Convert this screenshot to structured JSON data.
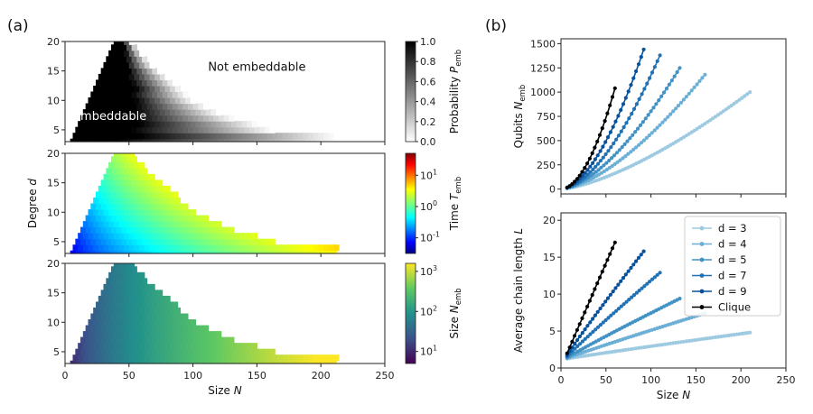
{
  "figure": {
    "panel_a_label": "(a)",
    "panel_b_label": "(b)"
  },
  "chart_data": [
    {
      "id": "a1",
      "type": "heatmap",
      "xlabel": "",
      "ylabel": "",
      "xlim": [
        0,
        250
      ],
      "ylim": [
        3,
        20
      ],
      "yticks": [
        5,
        10,
        15,
        20
      ],
      "x_tick_labels_shown": false,
      "colormap": "gray_r",
      "colorbar": {
        "label": "Probability",
        "symbol": "P",
        "subscript": "emb",
        "ticks": [
          "0.0",
          "0.2",
          "0.4",
          "0.6",
          "0.8",
          "1.0"
        ],
        "scale": "linear"
      },
      "annotations": [
        {
          "text": "Not embeddable",
          "x": 150,
          "y": 15,
          "color": "#111111"
        },
        {
          "text": "Embeddable",
          "x": 35,
          "y": 6.7,
          "color": "#ffffff"
        }
      ],
      "region_max_N_by_degree": [
        [
          3,
          212
        ],
        [
          4,
          212
        ],
        [
          5,
          162
        ],
        [
          6,
          150
        ],
        [
          7,
          132
        ],
        [
          8,
          120
        ],
        [
          9,
          110
        ],
        [
          10,
          100
        ],
        [
          11,
          95
        ],
        [
          12,
          90
        ],
        [
          13,
          85
        ],
        [
          14,
          80
        ],
        [
          15,
          74
        ],
        [
          16,
          68
        ],
        [
          17,
          64
        ],
        [
          18,
          60
        ],
        [
          19,
          56
        ],
        [
          20,
          52
        ]
      ],
      "fully_embeddable_max_N_by_degree": [
        [
          3,
          40
        ],
        [
          4,
          58
        ],
        [
          5,
          52
        ],
        [
          6,
          58
        ],
        [
          7,
          55
        ],
        [
          8,
          55
        ],
        [
          9,
          55
        ],
        [
          10,
          55
        ],
        [
          11,
          52
        ],
        [
          12,
          55
        ],
        [
          13,
          52
        ],
        [
          14,
          50
        ],
        [
          15,
          50
        ],
        [
          16,
          48
        ],
        [
          17,
          48
        ],
        [
          18,
          47
        ],
        [
          19,
          47
        ],
        [
          20,
          46
        ]
      ],
      "min_N_by_degree": [
        [
          3,
          4
        ],
        [
          4,
          6
        ],
        [
          5,
          8
        ],
        [
          6,
          10
        ],
        [
          7,
          12
        ],
        [
          8,
          14
        ],
        [
          9,
          16
        ],
        [
          10,
          18
        ],
        [
          11,
          20
        ],
        [
          12,
          22
        ],
        [
          13,
          24
        ],
        [
          14,
          26
        ],
        [
          15,
          28
        ],
        [
          16,
          30
        ],
        [
          17,
          32
        ],
        [
          18,
          34
        ],
        [
          19,
          36
        ],
        [
          20,
          38
        ]
      ]
    },
    {
      "id": "a2",
      "type": "heatmap",
      "xlabel": "",
      "ylabel": "Degree",
      "ylabel_symbol": "d",
      "xlim": [
        0,
        250
      ],
      "ylim": [
        3,
        20
      ],
      "yticks": [
        5,
        10,
        15,
        20
      ],
      "x_tick_labels_shown": false,
      "colormap": "jet",
      "colorbar": {
        "label": "Time",
        "symbol": "T",
        "subscript": "emb",
        "ticks": [
          "10",
          "10",
          "10"
        ],
        "tick_exponents": [
          "-1",
          "0",
          "1"
        ],
        "scale": "log",
        "range_log10": [
          -1.5,
          1.7
        ]
      },
      "value_log10_range": [
        -1.5,
        1.7
      ]
    },
    {
      "id": "a3",
      "type": "heatmap",
      "xlabel": "Size",
      "xlabel_symbol": "N",
      "ylabel": "",
      "xlim": [
        0,
        250
      ],
      "ylim": [
        3,
        20
      ],
      "xticks": [
        "0",
        "50",
        "100",
        "150",
        "200",
        "250"
      ],
      "yticks": [
        5,
        10,
        15,
        20
      ],
      "colormap": "viridis",
      "colorbar": {
        "label": "Size",
        "symbol": "N",
        "subscript": "emb",
        "ticks": [
          "10",
          "10",
          "10"
        ],
        "tick_exponents": [
          "1",
          "2",
          "3"
        ],
        "scale": "log",
        "range_log10": [
          0.7,
          3.2
        ]
      },
      "value_log10_range": [
        0.7,
        3.2
      ]
    },
    {
      "id": "b1",
      "type": "line",
      "xlabel": "",
      "ylabel": "Qubits",
      "ylabel_symbol": "N",
      "ylabel_subscript": "emb",
      "xlim": [
        0,
        250
      ],
      "ylim": [
        -50,
        1550
      ],
      "xticks": [
        0,
        50,
        100,
        150,
        200,
        250
      ],
      "yticks": [
        "0",
        "250",
        "500",
        "750",
        "1000",
        "1250",
        "1500"
      ],
      "x_tick_labels_shown": false,
      "series": [
        {
          "name": "d = 3",
          "color": "#9ecae1",
          "x_end": 210,
          "y_end": 1000,
          "exponent": 1.45
        },
        {
          "name": "d = 4",
          "color": "#6baed6",
          "x_end": 160,
          "y_end": 1180,
          "exponent": 1.55
        },
        {
          "name": "d = 5",
          "color": "#4292c6",
          "x_end": 132,
          "y_end": 1250,
          "exponent": 1.6
        },
        {
          "name": "d = 7",
          "color": "#2171b5",
          "x_end": 110,
          "y_end": 1380,
          "exponent": 1.7
        },
        {
          "name": "d = 9",
          "color": "#08519c",
          "x_end": 92,
          "y_end": 1440,
          "exponent": 1.75
        },
        {
          "name": "Clique",
          "color": "#000000",
          "x_end": 60,
          "y_end": 1040,
          "exponent": 1.9
        }
      ]
    },
    {
      "id": "b2",
      "type": "line",
      "xlabel": "Size",
      "xlabel_symbol": "N",
      "ylabel": "Average chain length",
      "ylabel_symbol": "L",
      "xlim": [
        0,
        250
      ],
      "ylim": [
        0,
        21
      ],
      "xticks": [
        "0",
        "50",
        "100",
        "150",
        "200",
        "250"
      ],
      "yticks": [
        "0",
        "5",
        "10",
        "15",
        "20"
      ],
      "legend": {
        "position": "upper right",
        "entries": [
          "d = 3",
          "d = 4",
          "d = 5",
          "d = 7",
          "d = 9",
          "Clique"
        ]
      },
      "series": [
        {
          "name": "d = 3",
          "color": "#9ecae1",
          "x_end": 210,
          "y_start": 1.2,
          "y_end": 4.8,
          "exponent": 0.95
        },
        {
          "name": "d = 4",
          "color": "#6baed6",
          "x_end": 160,
          "y_start": 1.2,
          "y_end": 7.4,
          "exponent": 0.95
        },
        {
          "name": "d = 5",
          "color": "#4292c6",
          "x_end": 132,
          "y_start": 1.2,
          "y_end": 9.4,
          "exponent": 0.95
        },
        {
          "name": "d = 7",
          "color": "#2171b5",
          "x_end": 110,
          "y_start": 1.2,
          "y_end": 12.9,
          "exponent": 0.95
        },
        {
          "name": "d = 9",
          "color": "#08519c",
          "x_end": 92,
          "y_start": 1.2,
          "y_end": 15.8,
          "exponent": 0.95
        },
        {
          "name": "Clique",
          "color": "#000000",
          "x_end": 60,
          "y_start": 1.2,
          "y_end": 17.0,
          "exponent": 1.0
        }
      ]
    }
  ]
}
